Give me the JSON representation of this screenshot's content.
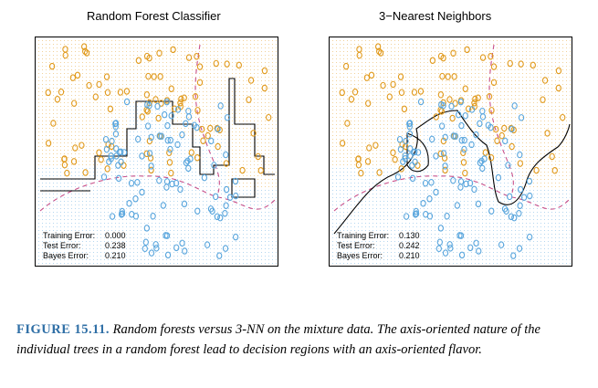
{
  "panels": [
    {
      "title": "Random Forest Classifier",
      "errors": [
        {
          "label": "Training Error:",
          "value": "0.000"
        },
        {
          "label": "Test Error:",
          "value": "0.238"
        },
        {
          "label": "Bayes Error:",
          "value": "0.210"
        }
      ]
    },
    {
      "title": "3−Nearest Neighbors",
      "errors": [
        {
          "label": "Training Error:",
          "value": "0.130"
        },
        {
          "label": "Test Error:",
          "value": "0.242"
        },
        {
          "label": "Bayes Error:",
          "value": "0.210"
        }
      ]
    }
  ],
  "caption": {
    "label": "FIGURE 15.11.",
    "text": " Random forests versus 3-NN on the mixture data. The axis-oriented nature of the individual trees in a random forest lead to decision regions with an axis-oriented flavor."
  },
  "colors": {
    "orange_class": "#e19a1c",
    "blue_class": "#5aa6dd",
    "bayes_boundary": "#c8508a",
    "decision_boundary": "#000000"
  }
}
